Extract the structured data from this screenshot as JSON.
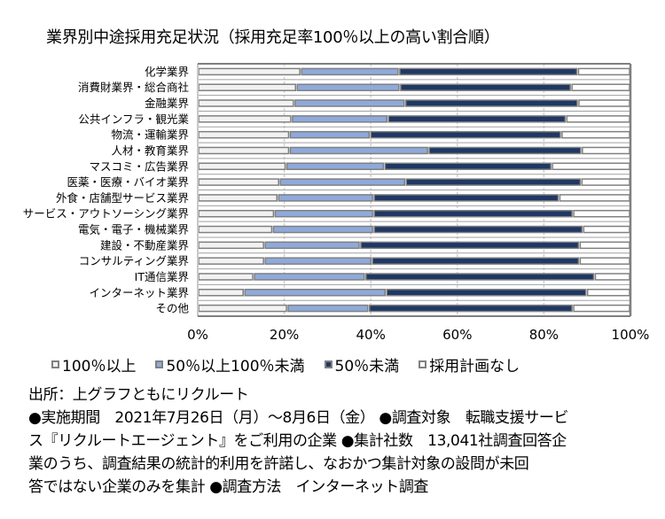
{
  "chart_data": {
    "type": "bar",
    "orientation": "horizontal",
    "stacked": true,
    "title": "業界別中途採用充足状況（採用充足率100％以上の高い割合順）",
    "xlabel": "",
    "ylabel": "",
    "xlim": [
      0,
      100
    ],
    "x_ticks": [
      "0%",
      "20%",
      "40%",
      "60%",
      "80%",
      "100%"
    ],
    "grid": true,
    "legend_position": "bottom",
    "categories": [
      "化学業界",
      "消費財業界・総合商社",
      "金融業界",
      "公共インフラ・観光業",
      "物流・運輸業界",
      "人材・教育業界",
      "マスコミ・広告業界",
      "医薬・医療・バイオ業界",
      "外食・店舗型サービス業界",
      "サービス・アウトソーシング業界",
      "電気・電子・機械業界",
      "建設・不動産業界",
      "コンサルティング業界",
      "IT通信業界",
      "インターネット業界",
      "その他"
    ],
    "series": [
      {
        "name": "100％以上",
        "color": "#f2f2f2",
        "values": [
          23.8,
          22.8,
          22.3,
          21.7,
          21.2,
          21.2,
          20.4,
          18.9,
          18.5,
          17.7,
          17.3,
          15.4,
          15.4,
          12.9,
          10.7,
          20.7
        ]
      },
      {
        "name": "50％以上100％未満",
        "color": "#8eaadb",
        "values": [
          22.7,
          23.9,
          25.6,
          22.2,
          18.6,
          32.1,
          22.7,
          29.1,
          22.1,
          22.9,
          23.3,
          22.1,
          24.8,
          25.8,
          32.8,
          18.8
        ]
      },
      {
        "name": "50％未満",
        "color": "#1f3864",
        "values": [
          41.3,
          39.6,
          40.0,
          41.2,
          44.2,
          35.4,
          38.7,
          40.6,
          42.9,
          46.1,
          48.4,
          50.7,
          48.0,
          53.0,
          46.4,
          47.2
        ]
      },
      {
        "name": "採用計画なし",
        "color": "#ffffff",
        "values": [
          12.2,
          13.7,
          12.1,
          14.9,
          16.0,
          11.3,
          18.2,
          11.4,
          16.5,
          13.3,
          11.0,
          11.8,
          11.8,
          8.3,
          10.1,
          13.3
        ]
      }
    ]
  },
  "footer": {
    "lines": [
      "出所：上グラフともにリクルート",
      "●実施期間　2021年7月26日（月）～8月6日（金） ●調査対象　転職支援サービ",
      "ス『リクルートエージェント』をご利用の企業 ●集計社数　13,041社調査回答企",
      "業のうち、調査結果の統計的利用を許諾し、なおかつ集計対象の設問が未回",
      "答ではない企業のみを集計 ●調査方法　インターネット調査"
    ]
  }
}
